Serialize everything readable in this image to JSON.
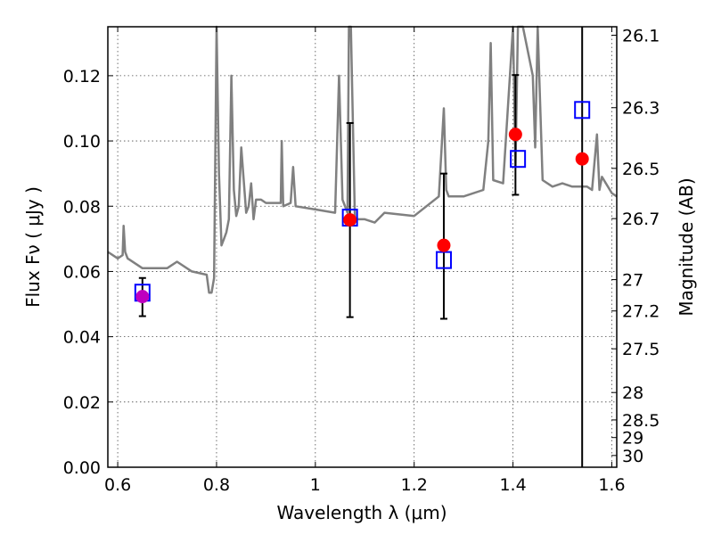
{
  "chart_data": {
    "type": "scatter",
    "xlabel": "Wavelength  λ (μm)",
    "ylabel": "Flux  Fν  ( μJy )",
    "ylabel_right": "Magnitude (AB)",
    "xlim": [
      0.58,
      1.61
    ],
    "ylim": [
      0.0,
      0.135
    ],
    "grid": true,
    "x_ticks": [
      0.6,
      0.8,
      1.0,
      1.2,
      1.4,
      1.6
    ],
    "x_tick_labels": [
      "0.6",
      "0.8",
      "1",
      "1.2",
      "1.4",
      "1.6"
    ],
    "y_ticks": [
      0.0,
      0.02,
      0.04,
      0.06,
      0.08,
      0.1,
      0.12
    ],
    "y_tick_labels": [
      "0.00",
      "0.02",
      "0.04",
      "0.06",
      "0.08",
      "0.10",
      "0.12"
    ],
    "right_axis_ticks": [
      {
        "label": "26.1",
        "flux": 0.1324
      },
      {
        "label": "26.3",
        "flux": 0.1102
      },
      {
        "label": "26.5",
        "flux": 0.0916
      },
      {
        "label": "26.7",
        "flux": 0.0762
      },
      {
        "label": "27",
        "flux": 0.0575
      },
      {
        "label": "27.2",
        "flux": 0.0479
      },
      {
        "label": "27.5",
        "flux": 0.0363
      },
      {
        "label": "28",
        "flux": 0.0229
      },
      {
        "label": "28.5",
        "flux": 0.0145
      },
      {
        "label": "29",
        "flux": 0.0091
      },
      {
        "label": "30",
        "flux": 0.0036
      }
    ],
    "series": [
      {
        "kind": "model_spectrum",
        "color": "#808080",
        "x": [
          0.58,
          0.6,
          0.61,
          0.612,
          0.615,
          0.62,
          0.65,
          0.7,
          0.72,
          0.75,
          0.78,
          0.785,
          0.79,
          0.795,
          0.8,
          0.805,
          0.81,
          0.815,
          0.82,
          0.825,
          0.83,
          0.835,
          0.84,
          0.845,
          0.85,
          0.86,
          0.865,
          0.87,
          0.875,
          0.88,
          0.89,
          0.9,
          0.93,
          0.932,
          0.935,
          0.95,
          0.955,
          0.96,
          1.0,
          1.04,
          1.048,
          1.055,
          1.065,
          1.068,
          1.072,
          1.08,
          1.1,
          1.12,
          1.14,
          1.2,
          1.25,
          1.26,
          1.265,
          1.27,
          1.3,
          1.34,
          1.35,
          1.355,
          1.36,
          1.38,
          1.4,
          1.405,
          1.41,
          1.42,
          1.44,
          1.445,
          1.45,
          1.46,
          1.48,
          1.5,
          1.52,
          1.55,
          1.56,
          1.57,
          1.575,
          1.58,
          1.6,
          1.61
        ],
        "y": [
          0.066,
          0.064,
          0.065,
          0.074,
          0.066,
          0.064,
          0.061,
          0.061,
          0.063,
          0.06,
          0.059,
          0.0535,
          0.0535,
          0.058,
          0.135,
          0.09,
          0.068,
          0.07,
          0.072,
          0.076,
          0.12,
          0.085,
          0.077,
          0.08,
          0.098,
          0.078,
          0.08,
          0.087,
          0.076,
          0.082,
          0.082,
          0.081,
          0.081,
          0.1,
          0.08,
          0.081,
          0.092,
          0.08,
          0.079,
          0.078,
          0.12,
          0.082,
          0.078,
          0.135,
          0.135,
          0.076,
          0.076,
          0.075,
          0.078,
          0.077,
          0.083,
          0.11,
          0.085,
          0.083,
          0.083,
          0.085,
          0.1,
          0.13,
          0.088,
          0.087,
          0.135,
          0.092,
          0.135,
          0.135,
          0.12,
          0.098,
          0.135,
          0.088,
          0.086,
          0.087,
          0.086,
          0.086,
          0.085,
          0.102,
          0.085,
          0.089,
          0.084,
          0.083
        ]
      },
      {
        "kind": "model_photometry",
        "marker": "open-square",
        "color": "#0000ff",
        "x": [
          0.65,
          1.07,
          1.26,
          1.41,
          1.54
        ],
        "y": [
          0.0535,
          0.0765,
          0.0635,
          0.0945,
          0.1095
        ]
      },
      {
        "kind": "observed_photometry",
        "marker": "filled-circle",
        "point_colors": [
          "#bf00bf",
          "#ff0000",
          "#ff0000",
          "#ff0000",
          "#ff0000"
        ],
        "x": [
          0.65,
          1.07,
          1.26,
          1.405,
          1.54
        ],
        "y": [
          0.0523,
          0.0758,
          0.068,
          0.102,
          0.0945
        ],
        "yerr_low": [
          0.0463,
          0.046,
          0.0455,
          0.0835,
          0.0
        ],
        "yerr_high": [
          0.058,
          0.1055,
          0.09,
          0.1202,
          0.135
        ]
      }
    ]
  }
}
